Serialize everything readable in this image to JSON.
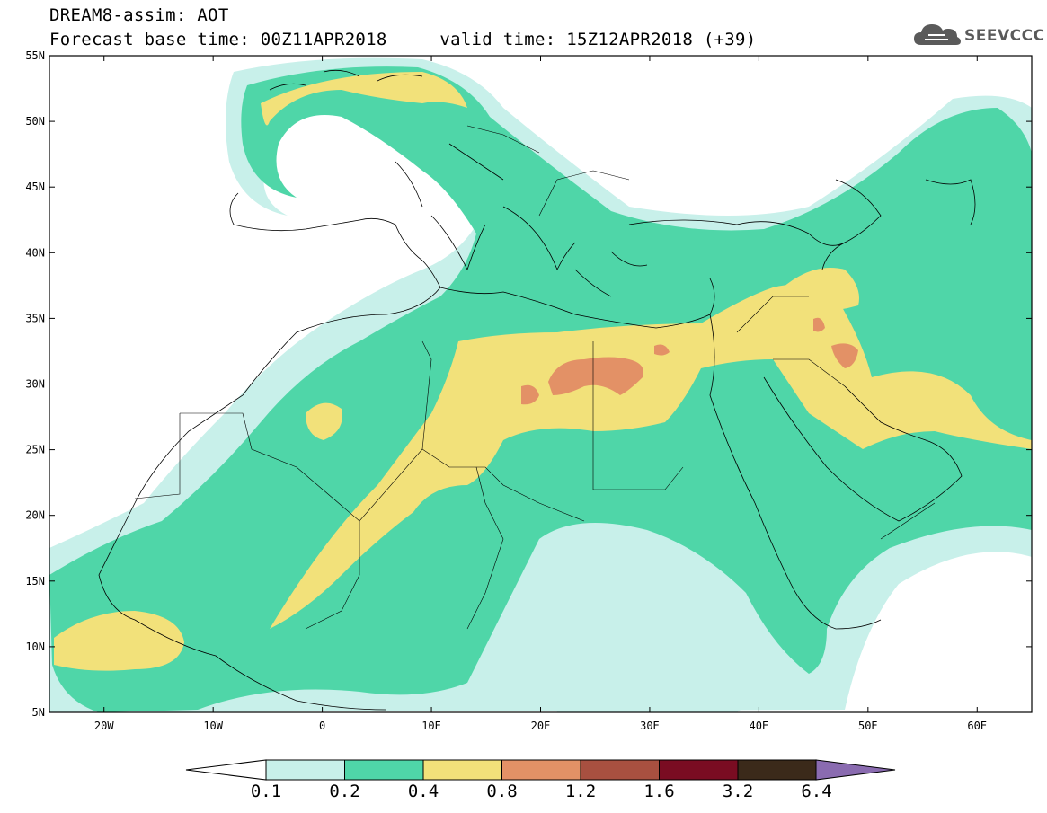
{
  "header": {
    "line1": "DREAM8-assim: AOT",
    "line2": "Forecast base time: 00Z11APR2018     valid time: 15Z12APR2018 (+39)",
    "logo_text": "SEEVCCC",
    "logo_icon": "cloud-icon"
  },
  "map": {
    "lat_labels": [
      "55N",
      "50N",
      "45N",
      "40N",
      "35N",
      "30N",
      "25N",
      "20N",
      "15N",
      "10N",
      "5N"
    ],
    "lon_labels": [
      "20W",
      "10W",
      "0",
      "10E",
      "20E",
      "30E",
      "40E",
      "50E",
      "60E"
    ],
    "extent": {
      "lon_min": -25,
      "lon_max": 65,
      "lat_min": 5,
      "lat_max": 55
    }
  },
  "colorbar": {
    "colors": [
      "#c8f0ea",
      "#4fd6a8",
      "#f2e17a",
      "#e39166",
      "#a85040",
      "#7a0c22",
      "#3b2a1a",
      "#8a6bb0"
    ],
    "labels": [
      "0.1",
      "0.2",
      "0.4",
      "0.8",
      "1.2",
      "1.6",
      "3.2",
      "6.4"
    ]
  }
}
